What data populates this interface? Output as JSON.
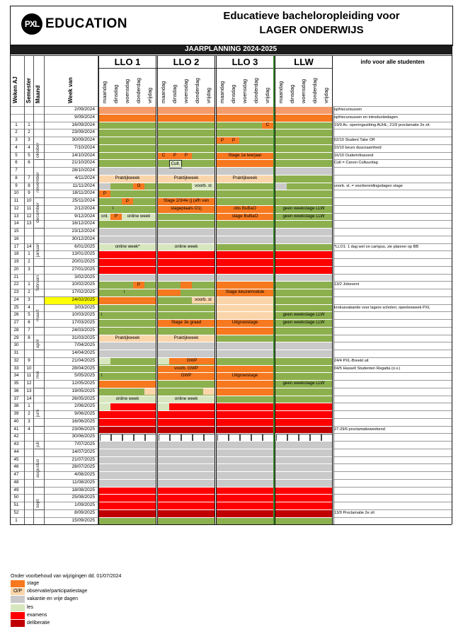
{
  "logo": {
    "mark": "PXL",
    "word": "EDUCATION"
  },
  "title": {
    "line1": "Educatieve bacheloropleiding voor",
    "line2": "LAGER ONDERWIJS"
  },
  "banner": "JAARPLANNING 2024-2025",
  "groups": [
    "LLO 1",
    "LLO 2",
    "LLO 3",
    "LLW"
  ],
  "info_header": "info voor alle studenten",
  "col_headers": {
    "weken": "Weken AJ",
    "semester": "Semester",
    "maand": "Maand",
    "week_van": "Week van"
  },
  "days": [
    "maandag",
    "dinsdag",
    "woensdag",
    "donderdag",
    "vrijdag"
  ],
  "colors": {
    "green": "#8db04f",
    "light_green": "#d7e6bf",
    "orange": "#f6781f",
    "peach": "#fad5aa",
    "grey": "#c9c9c9",
    "red": "#ff0000",
    "dark_red": "#c00000",
    "white": "#ffffff",
    "salmon": "#f59b6b",
    "highlight": "#ffff00"
  },
  "months": [
    "oktober",
    "november",
    "december",
    "januari",
    "februari",
    "maart",
    "april",
    "mei",
    "juni",
    "juli",
    "augustus",
    "sept"
  ],
  "rows": [
    {
      "w": "",
      "s": "",
      "d": "2/09/2024",
      "b": [
        "salmon",
        "salmon",
        "salmon",
        "salmon"
      ],
      "info": "opfriscursussen"
    },
    {
      "w": "",
      "s": "",
      "d": "9/09/2024",
      "b": [
        "orange",
        "orange",
        "orange",
        "orange"
      ],
      "info": "opfriscursussen en introductiedagen"
    },
    {
      "w": "1",
      "s": "1",
      "d": "16/09/2024",
      "b": [
        "green",
        "green",
        "green",
        "green"
      ],
      "info": "19/9 Ac. openingszitting AUHL; 21/9 proclamatie 2e zit"
    },
    {
      "w": "2",
      "s": "2",
      "d": "23/09/2024",
      "b": [
        "green",
        "green",
        "green",
        "green"
      ],
      "info": ""
    },
    {
      "w": "3",
      "s": "3",
      "d": "30/09/2024",
      "b": [
        "green",
        "green",
        "green",
        "green"
      ],
      "info": "02/10 Student Take Off"
    },
    {
      "w": "4",
      "s": "4",
      "d": "7/10/2024",
      "b": [
        "green",
        "green",
        "green",
        "green"
      ],
      "info": "10/10 beurs duurzaamheid"
    },
    {
      "w": "5",
      "s": "5",
      "d": "14/10/2024",
      "b": [
        "green",
        "green",
        "orange",
        "green"
      ],
      "info": "16/10 Ouderinfoavond"
    },
    {
      "w": "6",
      "s": "6",
      "d": "21/10/2024",
      "b": [
        "green",
        "green",
        "orange",
        "green"
      ],
      "info": "Cult = Canon Cultuurdag"
    },
    {
      "w": "7",
      "s": "",
      "d": "28/10/2024",
      "b": [
        "grey",
        "grey",
        "grey",
        "grey"
      ],
      "info": ""
    },
    {
      "w": "8",
      "s": "7",
      "d": "4/11/2024",
      "b": [
        "peach",
        "peach",
        "peach",
        "green"
      ],
      "info": ""
    },
    {
      "w": "9",
      "s": "8",
      "d": "11/11/2024",
      "b": [
        "green",
        "green",
        "green",
        "green"
      ],
      "info": "voorb. st. = voorbereidingsdagen stage"
    },
    {
      "w": "10",
      "s": "9",
      "d": "18/11/2024",
      "b": [
        "green",
        "green",
        "green",
        "green"
      ],
      "info": ""
    },
    {
      "w": "11",
      "s": "10",
      "d": "25/11/2024",
      "b": [
        "green",
        "orange",
        "green",
        "green"
      ],
      "info": ""
    },
    {
      "w": "12",
      "s": "11",
      "d": "2/12/2024",
      "b": [
        "green",
        "orange",
        "orange",
        "green"
      ],
      "info": ""
    },
    {
      "w": "13",
      "s": "12",
      "d": "9/12/2024",
      "b": [
        "green",
        "green",
        "orange",
        "green"
      ],
      "info": ""
    },
    {
      "w": "14",
      "s": "13",
      "d": "16/12/2024",
      "b": [
        "green",
        "green",
        "green",
        "green"
      ],
      "info": ""
    },
    {
      "w": "15",
      "s": "",
      "d": "23/12/2024",
      "b": [
        "grey",
        "grey",
        "grey",
        "grey"
      ],
      "info": ""
    },
    {
      "w": "16",
      "s": "",
      "d": "30/12/2024",
      "b": [
        "grey",
        "grey",
        "grey",
        "grey"
      ],
      "info": ""
    },
    {
      "w": "17",
      "s": "14",
      "d": "6/01/2025",
      "b": [
        "light_green",
        "light_green",
        "green",
        "green"
      ],
      "info": "*LLO1: 1 dag wel on campus, zie planner op BB"
    },
    {
      "w": "18",
      "s": "1",
      "d": "13/01/2025",
      "b": [
        "red",
        "red",
        "red",
        "red"
      ],
      "info": ""
    },
    {
      "w": "19",
      "s": "2",
      "d": "20/01/2025",
      "b": [
        "red",
        "red",
        "red",
        "red"
      ],
      "info": ""
    },
    {
      "w": "20",
      "s": "3",
      "d": "27/01/2025",
      "b": [
        "red",
        "red",
        "red",
        "red"
      ],
      "info": ""
    },
    {
      "w": "21",
      "s": "",
      "d": "3/02/2025",
      "b": [
        "grey",
        "grey",
        "grey",
        "grey"
      ],
      "info": ""
    },
    {
      "w": "22",
      "s": "1",
      "d": "10/02/2025",
      "b": [
        "green",
        "green",
        "orange",
        "green"
      ],
      "info": "13/2 Jobevent"
    },
    {
      "w": "23",
      "s": "2",
      "d": "17/02/2025",
      "b": [
        "green",
        "green",
        "orange",
        "green"
      ],
      "info": ""
    },
    {
      "w": "24",
      "s": "3",
      "d": "24/02/2025",
      "b": [
        "orange",
        "green",
        "peach",
        "green"
      ],
      "info": ""
    },
    {
      "w": "25",
      "s": "4",
      "d": "3/03/2025",
      "b": [
        "green",
        "green",
        "peach",
        "green"
      ],
      "info": "krokusvakantie voor lagere scholen; openlesweek PXL"
    },
    {
      "w": "26",
      "s": "5",
      "d": "10/03/2025",
      "b": [
        "green",
        "green",
        "peach",
        "green"
      ],
      "info": ""
    },
    {
      "w": "27",
      "s": "6",
      "d": "17/03/2025",
      "b": [
        "green",
        "orange",
        "orange",
        "green"
      ],
      "info": ""
    },
    {
      "w": "28",
      "s": "7",
      "d": "24/03/2025",
      "b": [
        "green",
        "green",
        "orange",
        "green"
      ],
      "info": ""
    },
    {
      "w": "29",
      "s": "8",
      "d": "31/03/2025",
      "b": [
        "peach",
        "peach",
        "green",
        "green"
      ],
      "info": ""
    },
    {
      "w": "30",
      "s": "",
      "d": "7/04/2025",
      "b": [
        "grey",
        "grey",
        "grey",
        "grey"
      ],
      "info": ""
    },
    {
      "w": "31",
      "s": "",
      "d": "14/04/2025",
      "b": [
        "grey",
        "grey",
        "grey",
        "grey"
      ],
      "info": ""
    },
    {
      "w": "32",
      "s": "9",
      "d": "21/04/2025",
      "b": [
        "green",
        "green",
        "green",
        "green"
      ],
      "info": "24/4 PXL-Breekt uit"
    },
    {
      "w": "33",
      "s": "10",
      "d": "28/04/2025",
      "b": [
        "green",
        "orange",
        "orange",
        "green"
      ],
      "info": "04/5 Hasselt Studenten Regatta (o.v.)"
    },
    {
      "w": "34",
      "s": "11",
      "d": "5/05/2025",
      "b": [
        "green",
        "orange",
        "orange",
        "green"
      ],
      "info": ""
    },
    {
      "w": "35",
      "s": "12",
      "d": "12/05/2025",
      "b": [
        "orange",
        "green",
        "orange",
        "green"
      ],
      "info": ""
    },
    {
      "w": "36",
      "s": "13",
      "d": "19/05/2025",
      "b": [
        "green",
        "green",
        "orange",
        "green"
      ],
      "info": ""
    },
    {
      "w": "37",
      "s": "14",
      "d": "26/05/2025",
      "b": [
        "light_green",
        "light_green",
        "green",
        "green"
      ],
      "info": ""
    },
    {
      "w": "38",
      "s": "1",
      "d": "2/06/2025",
      "b": [
        "red",
        "red",
        "red",
        "red"
      ],
      "info": ""
    },
    {
      "w": "39",
      "s": "2",
      "d": "9/06/2025",
      "b": [
        "red",
        "red",
        "red",
        "red"
      ],
      "info": ""
    },
    {
      "w": "40",
      "s": "3",
      "d": "16/06/2025",
      "b": [
        "red",
        "red",
        "red",
        "red"
      ],
      "info": ""
    },
    {
      "w": "41",
      "s": "4",
      "d": "23/06/2025",
      "b": [
        "dark_red",
        "dark_red",
        "dark_red",
        "dark_red"
      ],
      "info": "27-29/6 proclamatieweekend"
    },
    {
      "w": "42",
      "s": "",
      "d": "30/06/2025",
      "b": [
        "white",
        "white",
        "white",
        "white"
      ],
      "info": ""
    },
    {
      "w": "43",
      "s": "",
      "d": "7/07/2025",
      "b": [
        "grey",
        "grey",
        "grey",
        "grey"
      ],
      "info": ""
    },
    {
      "w": "44",
      "s": "",
      "d": "14/07/2025",
      "b": [
        "grey",
        "grey",
        "grey",
        "grey"
      ],
      "info": ""
    },
    {
      "w": "45",
      "s": "",
      "d": "21/07/2025",
      "b": [
        "grey",
        "grey",
        "grey",
        "grey"
      ],
      "info": ""
    },
    {
      "w": "46",
      "s": "",
      "d": "28/07/2025",
      "b": [
        "grey",
        "grey",
        "grey",
        "grey"
      ],
      "info": ""
    },
    {
      "w": "47",
      "s": "",
      "d": "4/08/2025",
      "b": [
        "grey",
        "grey",
        "grey",
        "grey"
      ],
      "info": ""
    },
    {
      "w": "48",
      "s": "",
      "d": "11/08/2025",
      "b": [
        "grey",
        "grey",
        "grey",
        "grey"
      ],
      "info": ""
    },
    {
      "w": "49",
      "s": "",
      "d": "18/08/2025",
      "b": [
        "red",
        "red",
        "red",
        "red"
      ],
      "info": ""
    },
    {
      "w": "50",
      "s": "",
      "d": "25/08/2025",
      "b": [
        "red",
        "red",
        "red",
        "red"
      ],
      "info": ""
    },
    {
      "w": "51",
      "s": "",
      "d": "1/09/2025",
      "b": [
        "red",
        "red",
        "red",
        "red"
      ],
      "info": ""
    },
    {
      "w": "52",
      "s": "",
      "d": "8/09/2025",
      "b": [
        "dark_red",
        "dark_red",
        "dark_red",
        "dark_red"
      ],
      "info": "13/9 Proclamatie 2e zit"
    },
    {
      "w": "1",
      "s": "",
      "d": "15/09/2025",
      "b": [
        "green",
        "green",
        "green",
        "green"
      ],
      "info": ""
    }
  ],
  "overlays": [
    {
      "r": 1,
      "g": 0,
      "c": "orange"
    },
    {
      "r": 1,
      "g": 1,
      "c": "orange"
    },
    {
      "r": 1,
      "g": 2,
      "c": "orange"
    },
    {
      "r": 2,
      "g": 2,
      "a": 4,
      "n": 1,
      "c": "orange",
      "t": "C"
    },
    {
      "r": 4,
      "g": 2,
      "a": 0,
      "n": 1,
      "c": "orange",
      "t": "P"
    },
    {
      "r": 4,
      "g": 2,
      "a": 1,
      "n": 1,
      "c": "orange",
      "t": "P"
    },
    {
      "r": 6,
      "g": 1,
      "a": 0,
      "n": 1,
      "c": "orange",
      "t": "C"
    },
    {
      "r": 6,
      "g": 1,
      "a": 1,
      "n": 1,
      "c": "orange",
      "t": "P"
    },
    {
      "r": 6,
      "g": 1,
      "a": 2,
      "n": 1,
      "c": "orange",
      "t": "P"
    },
    {
      "r": 7,
      "g": 1,
      "a": 1,
      "n": 1,
      "c": "light_green",
      "t": "Cult."
    },
    {
      "r": 10,
      "g": 0,
      "a": 0,
      "n": 1,
      "c": "grey"
    },
    {
      "r": 10,
      "g": 0,
      "a": 3,
      "n": 1,
      "c": "orange",
      "t": "O"
    },
    {
      "r": 10,
      "g": 1,
      "a": 3,
      "n": 2,
      "c": "light_green",
      "t": "voorb. st"
    },
    {
      "r": 10,
      "g": 3,
      "a": 0,
      "n": 1,
      "c": "grey"
    },
    {
      "r": 11,
      "g": 0,
      "a": 0,
      "n": 1,
      "c": "orange",
      "t": "P"
    },
    {
      "r": 12,
      "g": 0,
      "a": 2,
      "n": 1,
      "c": "orange",
      "t": "P"
    },
    {
      "r": 14,
      "g": 0,
      "a": 0,
      "n": 1,
      "c": "light_green",
      "t": "onl."
    },
    {
      "r": 14,
      "g": 0,
      "a": 1,
      "n": 1,
      "c": "orange",
      "t": "P"
    },
    {
      "r": 14,
      "g": 0,
      "a": 2,
      "n": 3,
      "c": "light_green",
      "t": "online week"
    },
    {
      "r": 23,
      "g": 0,
      "a": 3,
      "n": 1,
      "c": "orange",
      "t": "P"
    },
    {
      "r": 23,
      "g": 1,
      "a": 2,
      "n": 1,
      "c": "orange"
    },
    {
      "r": 24,
      "g": 1,
      "a": 0,
      "n": 2,
      "c": "orange"
    },
    {
      "r": 25,
      "g": 1,
      "a": 3,
      "n": 2,
      "c": "peach",
      "t": "voorb. st"
    },
    {
      "r": 29,
      "g": 1,
      "a": 0,
      "n": 1,
      "c": "green"
    },
    {
      "r": 33,
      "g": 0,
      "a": 0,
      "n": 1,
      "c": "light_green"
    },
    {
      "r": 33,
      "g": 1,
      "a": 0,
      "n": 1,
      "c": "light_green"
    },
    {
      "r": 33,
      "g": 1,
      "a": 1,
      "n": 4,
      "c": "orange",
      "t": "GWP"
    },
    {
      "r": 37,
      "g": 0,
      "a": 4,
      "n": 1,
      "c": "peach"
    },
    {
      "r": 37,
      "g": 1,
      "a": 4,
      "n": 1,
      "c": "peach"
    },
    {
      "r": 39,
      "g": 0,
      "a": 0,
      "n": 1,
      "c": "light_green"
    },
    {
      "r": 39,
      "g": 1,
      "a": 0,
      "n": 1,
      "c": "light_green"
    },
    {
      "r": 40,
      "g": 0,
      "a": 0,
      "n": 1,
      "c": "red"
    },
    {
      "r": 40,
      "g": 1,
      "a": 0,
      "n": 1,
      "c": "red"
    }
  ],
  "labels": [
    {
      "r": 9,
      "g": 0,
      "t": "Praktijkweek"
    },
    {
      "r": 9,
      "g": 1,
      "t": "Praktijkweek"
    },
    {
      "r": 9,
      "g": 2,
      "t": "Praktijkweek"
    },
    {
      "r": 12,
      "g": 1,
      "t": "Stage 2/3/4e (j (afh van"
    },
    {
      "r": 13,
      "g": 1,
      "t": "stageplaats O1)"
    },
    {
      "r": 13,
      "g": 2,
      "t": "obs BuBaO"
    },
    {
      "r": 14,
      "g": 2,
      "t": "stage BuBaO"
    },
    {
      "r": 13,
      "g": 3,
      "t": "geen weekstage LLW"
    },
    {
      "r": 14,
      "g": 3,
      "t": "geen weekstage LLW"
    },
    {
      "r": 6,
      "g": 2,
      "t": "Stage 1e leerjaar"
    },
    {
      "r": 18,
      "g": 0,
      "t": "online week*"
    },
    {
      "r": 18,
      "g": 1,
      "t": "online week"
    },
    {
      "r": 24,
      "g": 2,
      "t": "Stage keuzemodule"
    },
    {
      "r": 28,
      "g": 1,
      "t": "Stage 3e graad"
    },
    {
      "r": 28,
      "g": 2,
      "t": "Uitgroeistage"
    },
    {
      "r": 27,
      "g": 3,
      "t": "geen weekstage LLW"
    },
    {
      "r": 28,
      "g": 3,
      "t": "geen weekstage LLW"
    },
    {
      "r": 30,
      "g": 0,
      "t": "Praktijkweek"
    },
    {
      "r": 30,
      "g": 1,
      "t": "Praktijkweek"
    },
    {
      "r": 34,
      "g": 1,
      "t": "voorb. GWP"
    },
    {
      "r": 35,
      "g": 1,
      "t": "GWP"
    },
    {
      "r": 35,
      "g": 2,
      "t": "Uitgroeistage"
    },
    {
      "r": 36,
      "g": 3,
      "t": "geen weekstage LLW"
    },
    {
      "r": 38,
      "g": 0,
      "t": "online week"
    },
    {
      "r": 38,
      "g": 1,
      "t": "online week"
    }
  ],
  "small_marks": [
    {
      "r": 13,
      "g": 0,
      "a": 1,
      "t": "i"
    },
    {
      "r": 24,
      "g": 0,
      "a": 2,
      "t": "i"
    },
    {
      "r": 27,
      "g": 0,
      "a": 0,
      "t": "i"
    },
    {
      "r": 35,
      "g": 0,
      "a": 0,
      "t": "i"
    }
  ],
  "highlight_row": 25,
  "footer_note": "Onder voorbehoud van wijzigingen dd. 01/07/2024",
  "legend": [
    {
      "c": "orange",
      "label": "stage",
      "code": ""
    },
    {
      "c": "peach",
      "label": "observatie/participatiestage",
      "code": "O/P"
    },
    {
      "c": "grey",
      "label": "vakantie en vrije dagen",
      "code": ""
    },
    {
      "c": "light_green",
      "label": "les",
      "code": ""
    },
    {
      "c": "red",
      "label": "examens",
      "code": ""
    },
    {
      "c": "dark_red",
      "label": "deliberatie",
      "code": ""
    }
  ]
}
